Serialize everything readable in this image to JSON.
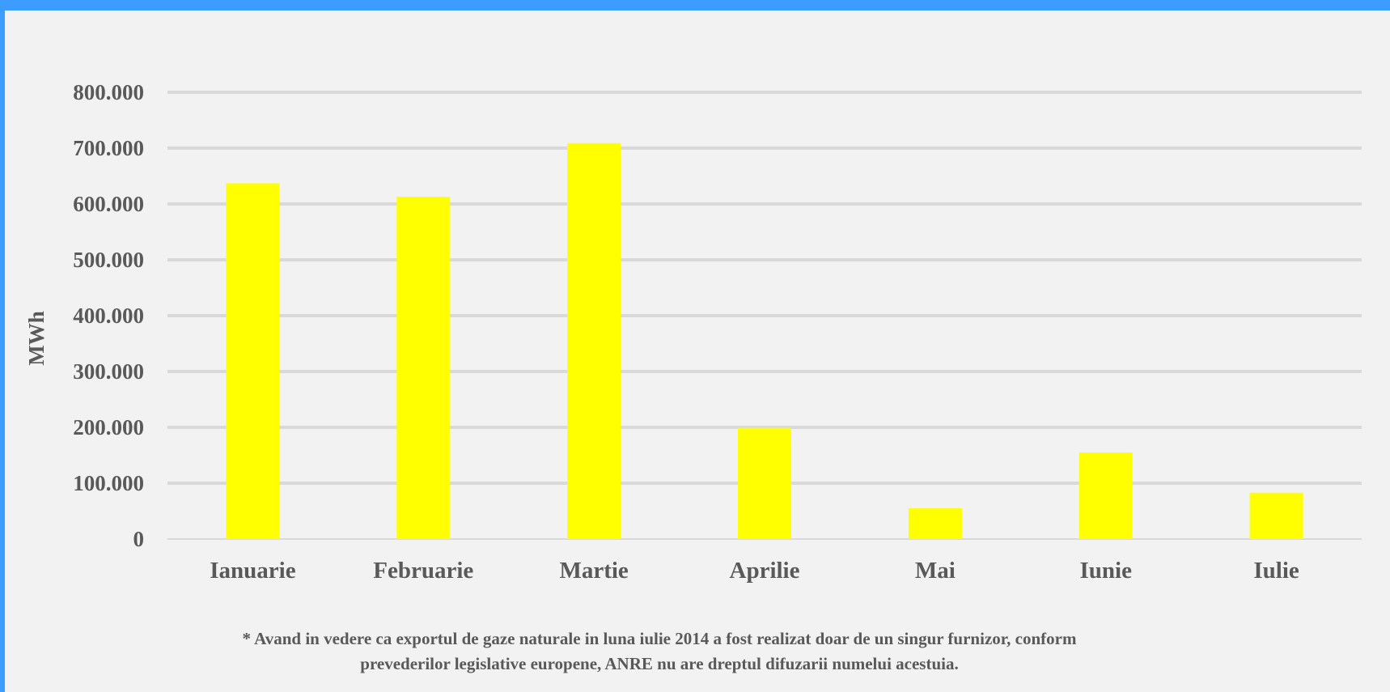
{
  "chart_data": {
    "type": "bar",
    "categories": [
      "Ianuarie",
      "Februarie",
      "Martie",
      "Aprilie",
      "Mai",
      "Iunie",
      "Iulie"
    ],
    "values": [
      637000,
      613000,
      709000,
      199000,
      55000,
      155000,
      83000
    ],
    "ylabel": "MWh",
    "ylim": [
      0,
      800000
    ],
    "yticks": [
      0,
      100000,
      200000,
      300000,
      400000,
      500000,
      600000,
      700000,
      800000
    ],
    "ytick_labels": [
      "0",
      "100.000",
      "200.000",
      "300.000",
      "400.000",
      "500.000",
      "600.000",
      "700.000",
      "800.000"
    ],
    "grid": true,
    "legend": "none"
  },
  "colors": {
    "border": "#3c9cff",
    "background": "#f2f2f2",
    "bar": "#ffff00",
    "grid": "#d9d9d9",
    "text": "#595959"
  },
  "footnote": {
    "line1": "* Avand in vedere ca exportul de gaze naturale in luna iulie 2014 a fost realizat doar de un singur furnizor, conform",
    "line2": "prevederilor legislative europene, ANRE nu are dreptul difuzarii numelui acestuia."
  }
}
